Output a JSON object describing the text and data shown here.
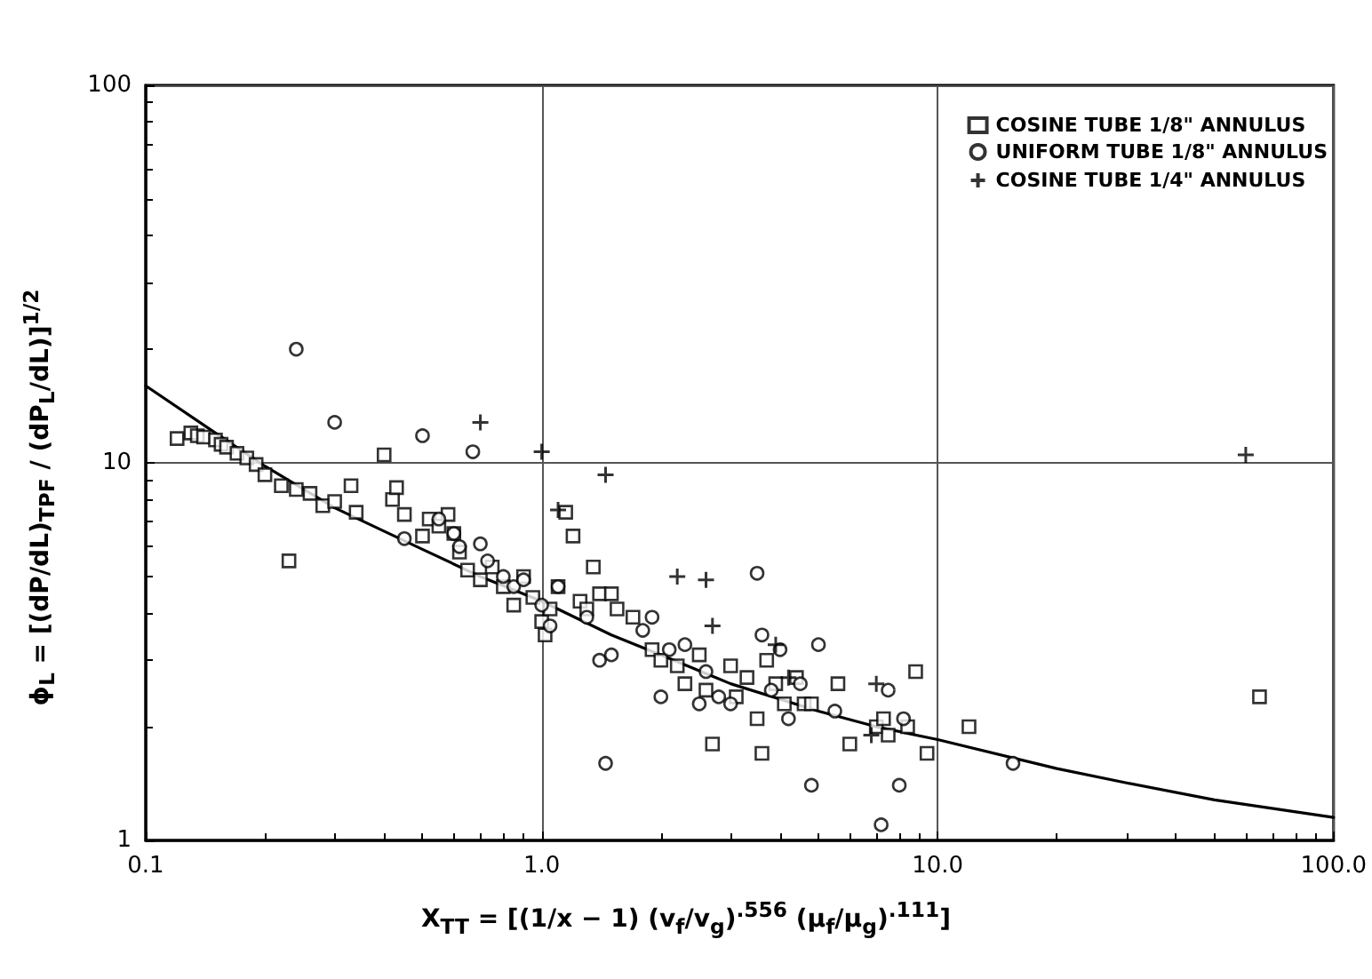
{
  "chart_data": {
    "type": "scatter",
    "xlabel": "X$_{TT}$ = [(1/x − 1) (v$_{f}$/v$_{g}$)$^{.556}$ (μ$_{f}$/μ$_{g}$)$^{.111}$]",
    "ylabel": "ϕ$_{L}$ = [(dP/dL)$_{TPF}$ / (dP$_{L}$/dL)]$^{1/2}$",
    "log": "xy",
    "grid": true,
    "legend": "top right",
    "xlim": [
      0.1,
      100
    ],
    "xticks": [
      {
        "value": 0.1,
        "label": "0.1"
      },
      {
        "value": 1,
        "label": "1.0"
      },
      {
        "value": 10,
        "label": "10.0"
      },
      {
        "value": 100,
        "label": "100.0"
      }
    ],
    "ylim": [
      1,
      100
    ],
    "yticks": [
      1,
      10,
      100
    ],
    "series": [
      {
        "name": "COSINE TUBE 1/8\" ANNULUS",
        "marker": "square",
        "color": "#000000",
        "x": [
          0.12,
          0.13,
          0.135,
          0.14,
          0.15,
          0.155,
          0.16,
          0.17,
          0.18,
          0.19,
          0.2,
          0.22,
          0.23,
          0.24,
          0.26,
          0.28,
          0.3,
          0.33,
          0.34,
          0.4,
          0.42,
          0.43,
          0.45,
          0.5,
          0.52,
          0.55,
          0.58,
          0.6,
          0.62,
          0.65,
          0.7,
          0.75,
          0.8,
          0.85,
          0.9,
          0.95,
          1.0,
          1.02,
          1.05,
          1.1,
          1.15,
          1.2,
          1.25,
          1.3,
          1.35,
          1.4,
          1.5,
          1.55,
          1.7,
          1.9,
          2.0,
          2.2,
          2.3,
          2.5,
          2.6,
          2.7,
          3.0,
          3.1,
          3.3,
          3.5,
          3.6,
          3.7,
          3.9,
          4.1,
          4.4,
          4.6,
          4.8,
          5.6,
          6.0,
          7.0,
          7.3,
          7.5,
          8.4,
          8.8,
          9.4,
          12,
          65
        ],
        "values": [
          11.6,
          12,
          11.8,
          11.7,
          11.5,
          11.2,
          11,
          10.6,
          10.3,
          9.9,
          9.3,
          8.7,
          5.5,
          8.5,
          8.3,
          7.7,
          7.9,
          8.7,
          7.4,
          10.5,
          8.0,
          8.6,
          7.3,
          6.4,
          7.1,
          6.8,
          7.3,
          6.5,
          5.8,
          5.2,
          4.9,
          5.3,
          4.7,
          4.2,
          5.0,
          4.4,
          3.8,
          3.5,
          4.1,
          4.7,
          7.4,
          6.4,
          4.3,
          4.1,
          5.3,
          4.5,
          4.5,
          4.1,
          3.9,
          3.2,
          3.0,
          2.9,
          2.6,
          3.1,
          2.5,
          1.8,
          2.9,
          2.4,
          2.7,
          2.1,
          1.7,
          3.0,
          2.6,
          2.3,
          2.7,
          2.3,
          2.3,
          2.6,
          1.8,
          2.0,
          2.1,
          1.9,
          2.0,
          2.8,
          1.7,
          2.0,
          2.4
        ]
      },
      {
        "name": "UNIFORM TUBE 1/8\" ANNULUS",
        "marker": "circle",
        "color": "#000000",
        "x": [
          0.24,
          0.3,
          0.5,
          0.67,
          0.45,
          0.55,
          0.6,
          0.62,
          0.7,
          0.73,
          0.8,
          0.85,
          0.9,
          1.0,
          1.05,
          1.1,
          1.3,
          1.4,
          1.45,
          1.5,
          1.8,
          1.9,
          2.0,
          2.1,
          2.3,
          2.5,
          2.6,
          2.8,
          3.0,
          3.5,
          3.6,
          3.8,
          4.0,
          4.2,
          4.5,
          4.8,
          5.0,
          5.5,
          7.2,
          7.5,
          8.0,
          8.2,
          15.5
        ],
        "values": [
          20,
          12.8,
          11.8,
          10.7,
          6.3,
          7.1,
          6.5,
          6.0,
          6.1,
          5.5,
          5.0,
          4.7,
          4.9,
          4.2,
          3.7,
          4.7,
          3.9,
          3.0,
          1.6,
          3.1,
          3.6,
          3.9,
          2.4,
          3.2,
          3.3,
          2.3,
          2.8,
          2.4,
          2.3,
          5.1,
          3.5,
          2.5,
          3.2,
          2.1,
          2.6,
          1.4,
          3.3,
          2.2,
          1.1,
          2.5,
          1.4,
          2.1,
          1.6
        ]
      },
      {
        "name": "COSINE TUBE 1/4\" ANNULUS",
        "marker": "cross",
        "color": "#000000",
        "x": [
          0.7,
          1.0,
          1.1,
          1.45,
          2.2,
          2.6,
          2.7,
          3.9,
          4.2,
          7.0,
          6.8,
          60
        ],
        "values": [
          12.8,
          10.7,
          7.5,
          9.3,
          5.0,
          4.9,
          3.7,
          3.3,
          2.7,
          2.6,
          1.9,
          10.5
        ]
      },
      {
        "type": "line",
        "marker": "none",
        "line_style": "solid",
        "color": "#000000",
        "x": [
          0.1,
          0.15,
          0.2,
          0.3,
          0.5,
          0.7,
          1,
          1.5,
          2,
          3,
          5,
          7,
          10,
          20,
          30,
          50,
          100
        ],
        "values": [
          16,
          12,
          9.8,
          7.6,
          5.9,
          5.0,
          4.3,
          3.5,
          3.1,
          2.6,
          2.2,
          2.0,
          1.85,
          1.55,
          1.42,
          1.28,
          1.15
        ]
      }
    ]
  }
}
